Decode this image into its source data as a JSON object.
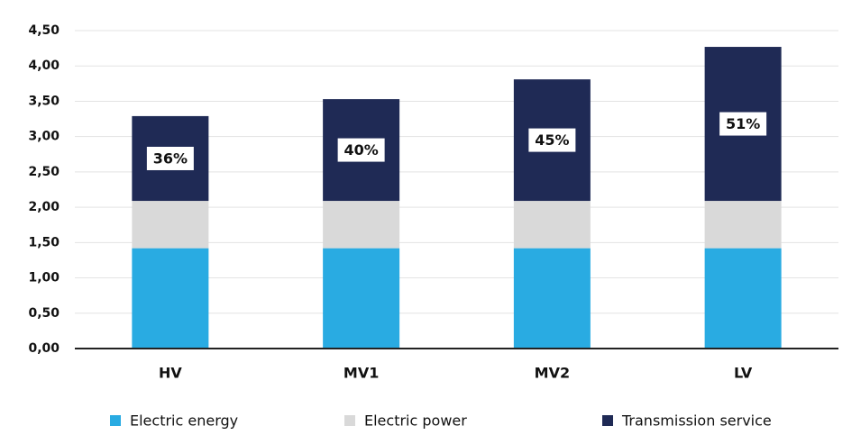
{
  "chart_data": {
    "type": "stacked_bar",
    "categories": [
      "HV",
      "MV1",
      "MV2",
      "LV"
    ],
    "series": [
      {
        "name": "Electric energy",
        "color": "#29abe2",
        "values": [
          1.42,
          1.42,
          1.42,
          1.42
        ]
      },
      {
        "name": "Electric power",
        "color": "#d9d9d9",
        "values": [
          0.67,
          0.67,
          0.67,
          0.67
        ]
      },
      {
        "name": "Transmission service",
        "color": "#1f2a55",
        "values": [
          1.2,
          1.44,
          1.72,
          2.18
        ],
        "share_labels": [
          "36%",
          "40%",
          "45%",
          "51%"
        ]
      }
    ],
    "ylim": [
      0,
      4.5
    ],
    "yticks": [
      {
        "value": 0,
        "label": "0,00"
      },
      {
        "value": 0.5,
        "label": "0,50"
      },
      {
        "value": 1,
        "label": "1,00"
      },
      {
        "value": 1.5,
        "label": "1,50"
      },
      {
        "value": 2,
        "label": "2,00"
      },
      {
        "value": 2.5,
        "label": "2,50"
      },
      {
        "value": 3,
        "label": "3,00"
      },
      {
        "value": 3.5,
        "label": "3,50"
      },
      {
        "value": 4,
        "label": "4,00"
      },
      {
        "value": 4.5,
        "label": "4,50"
      }
    ],
    "grid": true,
    "legend": "bottom"
  }
}
